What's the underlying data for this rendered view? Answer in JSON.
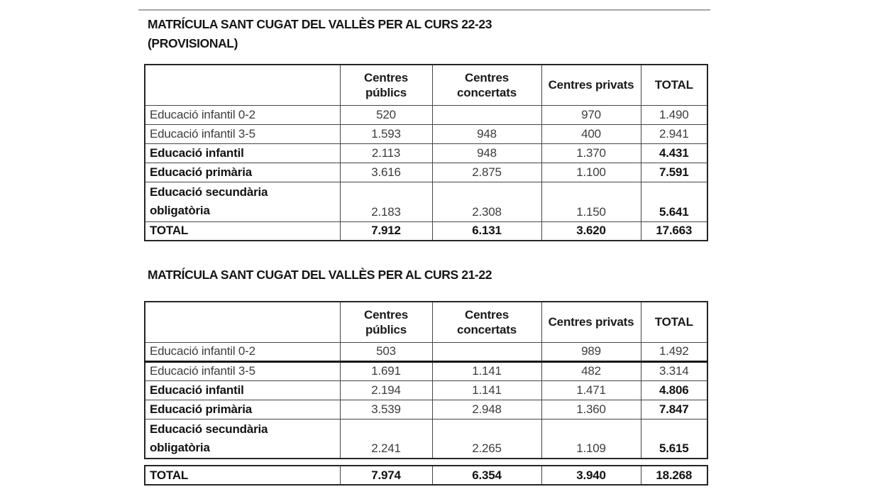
{
  "accent_colors": {
    "text_regular": "#3d3d3d",
    "text_bold": "#131313",
    "rule": "#a8a8a8"
  },
  "tables": [
    {
      "title_line1": "MATRÍCULA SANT CUGAT DEL VALLÈS PER AL CURS 22-23",
      "title_line2": "(PROVISIONAL)",
      "headers": [
        "",
        "Centres públics",
        "Centres concertats",
        "Centres privats",
        "TOTAL"
      ],
      "rows": [
        {
          "label": "Educació infantil 0-2",
          "values": [
            "520",
            "",
            "970",
            "1.490"
          ]
        },
        {
          "label": "Educació infantil 3-5",
          "values": [
            "1.593",
            "948",
            "400",
            "2.941"
          ]
        },
        {
          "label": "Educació infantil",
          "values": [
            "2.113",
            "948",
            "1.370",
            "4.431"
          ]
        },
        {
          "label": "Educació primària",
          "values": [
            "3.616",
            "2.875",
            "1.100",
            "7.591"
          ]
        },
        {
          "label": "Educació secundària obligatòria",
          "values": [
            "2.183",
            "2.308",
            "1.150",
            "5.641"
          ]
        },
        {
          "label": "TOTAL",
          "values": [
            "7.912",
            "6.131",
            "3.620",
            "17.663"
          ]
        }
      ]
    },
    {
      "title_line1": "MATRÍCULA SANT CUGAT DEL VALLÈS PER AL CURS 21-22",
      "headers": [
        "",
        "Centres públics",
        "Centres concertats",
        "Centres privats",
        "TOTAL"
      ],
      "rows": [
        {
          "label": "Educació infantil 0-2",
          "values": [
            "503",
            "",
            "989",
            "1.492"
          ]
        },
        {
          "label": "Educació infantil 3-5",
          "values": [
            "1.691",
            "1.141",
            "482",
            "3.314"
          ]
        },
        {
          "label": "Educació infantil",
          "values": [
            "2.194",
            "1.141",
            "1.471",
            "4.806"
          ]
        },
        {
          "label": "Educació primària",
          "values": [
            "3.539",
            "2.948",
            "1.360",
            "7.847"
          ]
        },
        {
          "label": "Educació secundària obligatòria",
          "values": [
            "2.241",
            "2.265",
            "1.109",
            "5.615"
          ]
        },
        {
          "label": "TOTAL",
          "values": [
            "7.974",
            "6.354",
            "3.940",
            "18.268"
          ]
        }
      ]
    }
  ]
}
